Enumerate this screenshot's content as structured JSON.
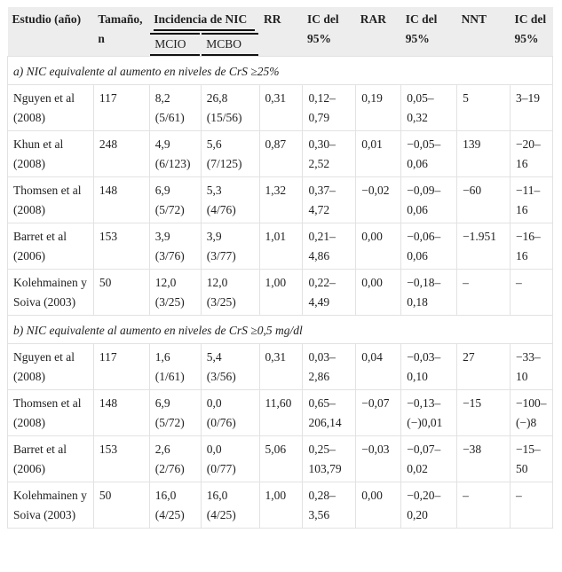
{
  "headers": {
    "study": "Estudio (año)",
    "size": "Tamaño, n",
    "incidence": "Incidencia de NIC",
    "mcio": "MCIO",
    "mcbo": "MCBO",
    "rr": "RR",
    "ic1": "IC del 95%",
    "rar": "RAR",
    "ic2": "IC del 95%",
    "nnt": "NNT",
    "ic3": "IC del 95%"
  },
  "sections": [
    {
      "title": "a) NIC equivalente al aumento en niveles de CrS ≥25%",
      "rows": [
        [
          "Nguyen et al (2008)",
          "117",
          "8,2 (5/61)",
          "26,8 (15/56)",
          "0,31",
          "0,12–0,79",
          "0,19",
          "0,05–0,32",
          "5",
          "3–19"
        ],
        [
          "Khun et al (2008)",
          "248",
          "4,9 (6/123)",
          "5,6 (7/125)",
          "0,87",
          "0,30–2,52",
          "0,01",
          "−0,05–0,06",
          "139",
          "−20–16"
        ],
        [
          "Thomsen et al (2008)",
          "148",
          "6,9 (5/72)",
          "5,3 (4/76)",
          "1,32",
          "0,37–4,72",
          "−0,02",
          "−0,09–0,06",
          "−60",
          "−11–16"
        ],
        [
          "Barret et al (2006)",
          "153",
          "3,9 (3/76)",
          "3,9 (3/77)",
          "1,01",
          "0,21–4,86",
          "0,00",
          "−0,06–0,06",
          "−1.951",
          "−16–16"
        ],
        [
          "Kolehmainen y Soiva (2003)",
          "50",
          "12,0 (3/25)",
          "12,0 (3/25)",
          "1,00",
          "0,22–4,49",
          "0,00",
          "−0,18–0,18",
          "–",
          "–"
        ]
      ]
    },
    {
      "title": "b) NIC equivalente al aumento en niveles de CrS ≥0,5 mg/dl",
      "rows": [
        [
          "Nguyen et al (2008)",
          "117",
          "1,6 (1/61)",
          "5,4 (3/56)",
          "0,31",
          "0,03–2,86",
          "0,04",
          "−0,03–0,10",
          "27",
          "−33–10"
        ],
        [
          "Thomsen et al (2008)",
          "148",
          "6,9 (5/72)",
          "0,0 (0/76)",
          "11,60",
          "0,65–206,14",
          "−0,07",
          "−0,13–(−)0,01",
          "−15",
          "−100–(−)8"
        ],
        [
          "Barret et al (2006)",
          "153",
          "2,6 (2/76)",
          "0,0 (0/77)",
          "5,06",
          "0,25–103,79",
          "−0,03",
          "−0,07–0,02",
          "−38",
          "−15–50"
        ],
        [
          "Kolehmainen y Soiva (2003)",
          "50",
          "16,0 (4/25)",
          "16,0 (4/25)",
          "1,00",
          "0,28–3,56",
          "0,00",
          "−0,20–0,20",
          "–",
          "–"
        ]
      ]
    }
  ]
}
